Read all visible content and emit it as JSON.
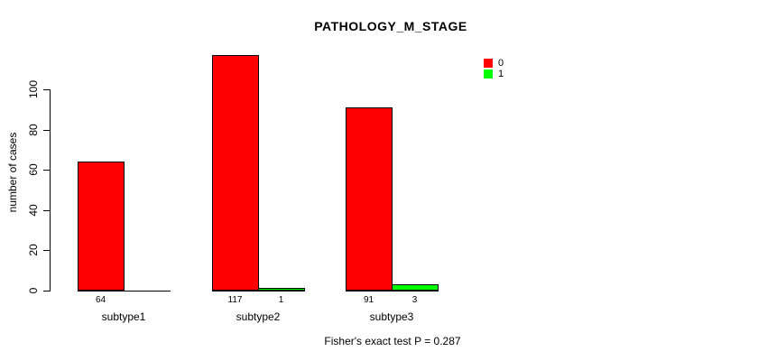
{
  "chart_data": {
    "type": "bar",
    "title": "PATHOLOGY_M_STAGE",
    "ylabel": "number of cases",
    "xlabel": "",
    "categories": [
      "subtype1",
      "subtype2",
      "subtype3"
    ],
    "series": [
      {
        "name": "0",
        "color": "#ff0000",
        "values": [
          64,
          117,
          91
        ],
        "value_labels": [
          "64",
          "117",
          "91"
        ]
      },
      {
        "name": "1",
        "color": "#00ff00",
        "values": [
          0,
          1,
          3
        ],
        "value_labels": [
          "",
          "1",
          "3"
        ]
      }
    ],
    "yticks": [
      0,
      20,
      40,
      60,
      80,
      100
    ],
    "axis_range_shown": [
      0,
      100
    ],
    "grid": false,
    "legend": {
      "position": "top-right",
      "items": [
        {
          "label": "0",
          "color": "#ff0000"
        },
        {
          "label": "1",
          "color": "#00ff00"
        }
      ]
    },
    "annotation": "Fisher's exact test P = 0.287"
  },
  "colors": {
    "series_0": "#ff0000",
    "series_1": "#00ff00",
    "axis": "#000000",
    "text": "#000000",
    "background": "#ffffff"
  }
}
